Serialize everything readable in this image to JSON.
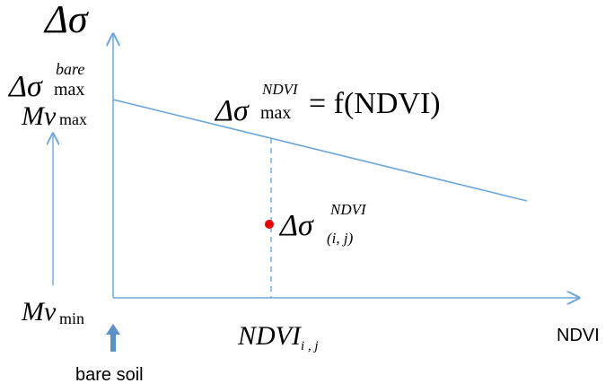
{
  "axes": {
    "y_symbol": "Δσ",
    "x_label": "NDVI",
    "color": "#6fa8dc"
  },
  "labels": {
    "delta_sigma_symbol": "Δσ",
    "sigma_bare_sup": "bare",
    "max_sub": "max",
    "mv_symbol": "Mv",
    "mv_max_sub": "max",
    "mv_min_sub": "min",
    "formula_delta_sigma": "Δσ",
    "formula_sup": "NDVI",
    "formula_sub": "max",
    "formula_rhs": "= f(NDVI)",
    "point_delta_sigma": "Δσ",
    "point_sup": "NDVI",
    "point_sub": "(i, j)",
    "ndvi_ij_main": "NDVI",
    "ndvi_ij_sub": "i , j",
    "bare_soil": "bare soil"
  },
  "colors": {
    "line": "#6fa8dc",
    "point": "#e60000",
    "bare_soil_arrow": "#5b8fc7"
  }
}
